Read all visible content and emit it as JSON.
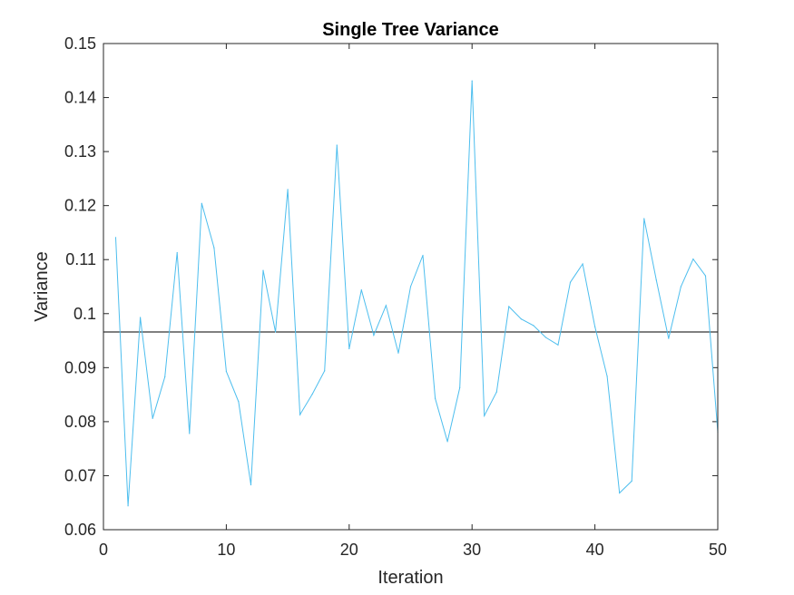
{
  "chart_data": {
    "type": "line",
    "title": "Single Tree Variance",
    "xlabel": "Iteration",
    "ylabel": "Variance",
    "xlim": [
      0,
      50
    ],
    "ylim": [
      0.06,
      0.15
    ],
    "xticks": [
      "0",
      "10",
      "20",
      "30",
      "40",
      "50"
    ],
    "yticks": [
      "0.06",
      "0.07",
      "0.08",
      "0.09",
      "0.1",
      "0.11",
      "0.12",
      "0.13",
      "0.14",
      "0.15"
    ],
    "grid": false,
    "colors": {
      "series": "#4DBEEE",
      "mean_line": "#000000",
      "axes": "#262626"
    },
    "series": [
      {
        "x": [
          1,
          2,
          3,
          4,
          5,
          6,
          7,
          8,
          9,
          10,
          11,
          12,
          13,
          14,
          15,
          16,
          17,
          18,
          19,
          20,
          21,
          22,
          23,
          24,
          25,
          26,
          27,
          28,
          29,
          30,
          31,
          32,
          33,
          34,
          35,
          36,
          37,
          38,
          39,
          40,
          41,
          42,
          43,
          44,
          45,
          46,
          47,
          48,
          49,
          50
        ],
        "values": [
          0.1141,
          0.0644,
          0.0993,
          0.0806,
          0.0883,
          0.1113,
          0.0778,
          0.1204,
          0.1122,
          0.0893,
          0.0837,
          0.0683,
          0.108,
          0.0966,
          0.123,
          0.0813,
          0.0851,
          0.0894,
          0.1312,
          0.0935,
          0.1044,
          0.096,
          0.1015,
          0.0927,
          0.105,
          0.1108,
          0.0843,
          0.0763,
          0.0863,
          0.1431,
          0.0811,
          0.0855,
          0.1013,
          0.099,
          0.0978,
          0.0956,
          0.0942,
          0.1058,
          0.1092,
          0.0976,
          0.0884,
          0.0668,
          0.069,
          0.1176,
          0.1062,
          0.0954,
          0.105,
          0.1101,
          0.107,
          0.0781
        ]
      }
    ],
    "reference_line": {
      "y": 0.0966
    }
  }
}
